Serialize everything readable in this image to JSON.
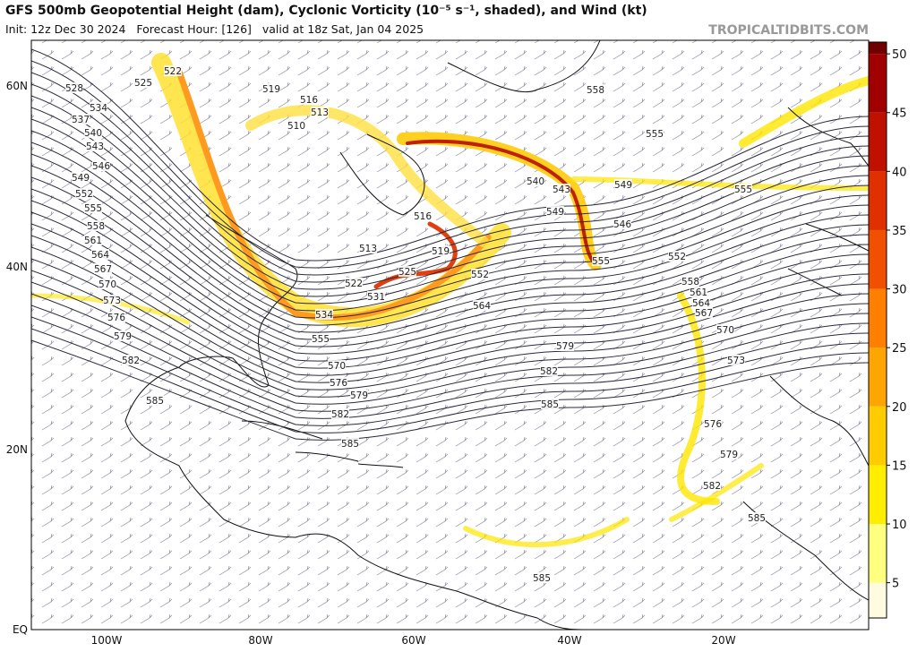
{
  "map": {
    "title": "GFS 500mb Geopotential Height (dam), Cyclonic Vorticity (10⁻⁵ s⁻¹, shaded), and Wind (kt)",
    "subtitle": "Init: 12z Dec 30 2024   Forecast Hour: [126]   valid at 18z Sat, Jan 04 2025",
    "source": "TROPICALTIDBITS.COM",
    "lat_labels": [
      "60N",
      "40N",
      "20N",
      "EQ"
    ],
    "lon_labels": [
      "100W",
      "80W",
      "60W",
      "40W",
      "20W"
    ],
    "colorbar": {
      "lim": [
        2,
        51
      ],
      "ticks": [
        5,
        10,
        15,
        20,
        25,
        30,
        35,
        40,
        45,
        50
      ],
      "colors": [
        "#fffbe0",
        "#ffff80",
        "#ffee00",
        "#ffcc00",
        "#ffa500",
        "#ff8000",
        "#f05000",
        "#e03000",
        "#c01000",
        "#a00000",
        "#700000"
      ]
    },
    "contour_labels": [
      522,
      525,
      528,
      519,
      516,
      513,
      510,
      534,
      537,
      540,
      543,
      546,
      549,
      552,
      555,
      558,
      561,
      564,
      567,
      570,
      573,
      576,
      579,
      582,
      585,
      516,
      519,
      513,
      525,
      522,
      531,
      534,
      555,
      570,
      576,
      579,
      582,
      585,
      552,
      564,
      540,
      543,
      549,
      546,
      552,
      549,
      555,
      555,
      558,
      579,
      582,
      585,
      573,
      570,
      576,
      579,
      582,
      585,
      585,
      558,
      561,
      564,
      567,
      555
    ]
  }
}
